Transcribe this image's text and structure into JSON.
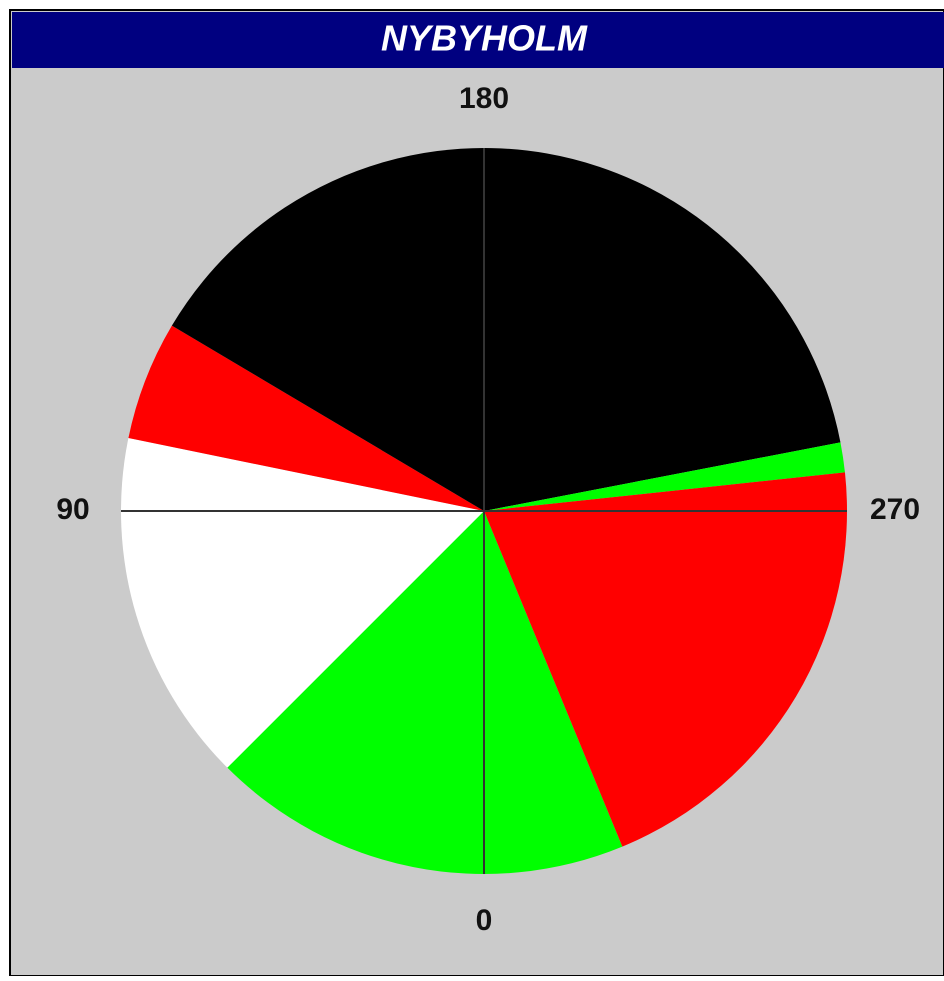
{
  "chart_data": {
    "type": "sector",
    "title": "NYBYHOLM",
    "sectors": [
      {
        "start": 337.6,
        "end": 45,
        "color": "#00ff00"
      },
      {
        "start": 45,
        "end": 101.6,
        "color": "#ffffff"
      },
      {
        "start": 101.6,
        "end": 120.7,
        "color": "#ff0000"
      },
      {
        "start": 120.7,
        "end": 259.1,
        "color": "#000000"
      },
      {
        "start": 259.1,
        "end": 263.9,
        "color": "#00ff00"
      },
      {
        "start": 263.9,
        "end": 337.6,
        "color": "#ff0000"
      }
    ],
    "angle_ticks": [
      0,
      90,
      180,
      270
    ]
  }
}
